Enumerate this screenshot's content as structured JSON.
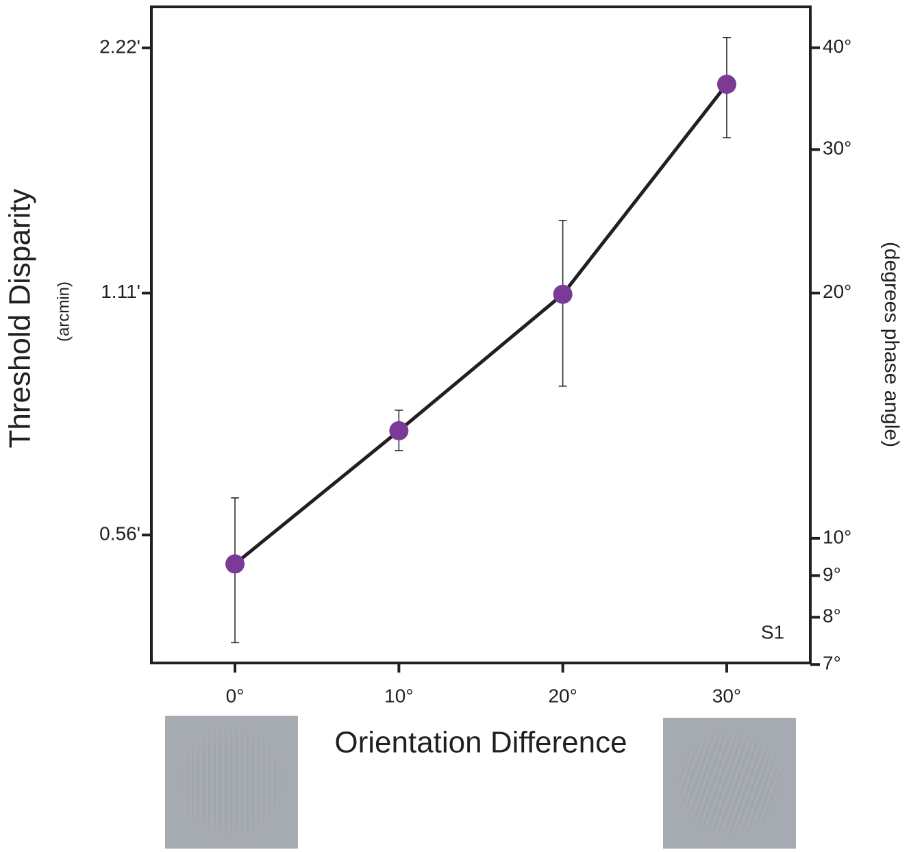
{
  "chart_data": {
    "type": "line",
    "ylabel": "Threshold Disparity",
    "ylabel_sub": "(arcmin)",
    "y2label": "(degrees phase angle)",
    "xlabel": "Orientation Difference",
    "annotation": "S1",
    "x": [
      0,
      10,
      20,
      30
    ],
    "series": [
      {
        "color": "#7b3a96",
        "line_color": "#231f20",
        "values": [
          0.516,
          0.752,
          1.106,
          2.003
        ],
        "lower": [
          0.413,
          0.711,
          0.853,
          1.722
        ],
        "upper": [
          0.622,
          0.797,
          1.363,
          2.286
        ]
      }
    ],
    "xlim": [
      -5.1,
      35.1
    ],
    "xticks": [
      {
        "value": 0,
        "label": "0°"
      },
      {
        "value": 10,
        "label": "10°"
      },
      {
        "value": 20,
        "label": "20°"
      },
      {
        "value": 30,
        "label": "30°"
      }
    ],
    "ylim": [
      0.39,
      2.493
    ],
    "yscale": "log",
    "yticks": [
      {
        "value": 0.56,
        "label": "0.56'"
      },
      {
        "value": 1.11,
        "label": "1.11'"
      },
      {
        "value": 2.22,
        "label": "2.22'"
      }
    ],
    "y2lim": [
      7.03,
      44.9
    ],
    "y2scale": "log",
    "y2ticks": [
      {
        "value": 7,
        "label": "7°"
      },
      {
        "value": 8,
        "label": "8°"
      },
      {
        "value": 9,
        "label": "9°"
      },
      {
        "value": 10,
        "label": "10°"
      },
      {
        "value": 20,
        "label": "20°"
      },
      {
        "value": 30,
        "label": "30°"
      },
      {
        "value": 40,
        "label": "40°"
      }
    ]
  }
}
